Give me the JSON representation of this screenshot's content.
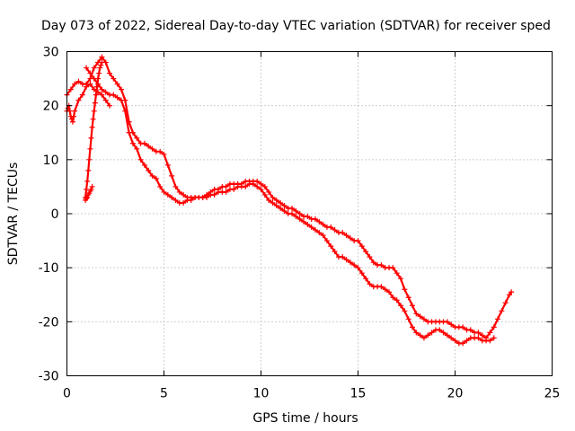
{
  "chart_data": {
    "type": "scatter",
    "title": "Day 073 of 2022, Sidereal Day-to-day VTEC variation (SDTVAR) for receiver sped",
    "xlabel": "GPS time / hours",
    "ylabel": "SDTVAR / TECUs",
    "xlim": [
      0,
      25
    ],
    "ylim": [
      -30,
      30
    ],
    "xticks": [
      "0",
      "5",
      "10",
      "15",
      "20",
      "25"
    ],
    "yticks": [
      "-30",
      "-20",
      "-10",
      "0",
      "10",
      "20",
      "30"
    ],
    "grid": true,
    "marker": "+",
    "color": "#ff0000",
    "series": [
      {
        "name": "track-a",
        "x": [
          0.0,
          0.2,
          0.4,
          0.6,
          0.8,
          1.0,
          1.2,
          1.4,
          1.6,
          1.8,
          2.0,
          2.2,
          2.4,
          2.6,
          2.8,
          3.0,
          3.2,
          3.4,
          3.6,
          3.8,
          4.0,
          4.2,
          4.4,
          4.6,
          4.8,
          5.0,
          5.2,
          5.4,
          5.6,
          5.8,
          6.0,
          6.2,
          6.4,
          6.6,
          6.8,
          7.0,
          7.2,
          7.4,
          7.6,
          7.8,
          8.0,
          8.2,
          8.4,
          8.6,
          8.8,
          9.0,
          9.2,
          9.4,
          9.6,
          9.8,
          10.0,
          10.2,
          10.4,
          10.6,
          10.8,
          11.0,
          11.2,
          11.4,
          11.6,
          11.8,
          12.0,
          12.2,
          12.4,
          12.6,
          12.8,
          13.0,
          13.2,
          13.4,
          13.6,
          13.8,
          14.0,
          14.2,
          14.4,
          14.6,
          14.8,
          15.0,
          15.2,
          15.4,
          15.6,
          15.8,
          16.0,
          16.2,
          16.4,
          16.6,
          16.8,
          17.0,
          17.2,
          17.4,
          17.6,
          17.8,
          18.0,
          18.2,
          18.4,
          18.6,
          18.8,
          19.0,
          19.2,
          19.4,
          19.6,
          19.8,
          20.0,
          20.2,
          20.4,
          20.6,
          20.8,
          21.0,
          21.2,
          21.4,
          21.6,
          21.8,
          22.0,
          22.2,
          22.4,
          22.6,
          22.8,
          22.9
        ],
        "y": [
          22,
          23,
          24,
          24.5,
          24,
          24,
          25,
          27,
          28,
          29,
          28,
          26,
          25,
          24,
          23,
          21,
          17,
          15,
          14,
          13,
          13,
          12.5,
          12,
          11.5,
          11.5,
          11,
          9,
          7,
          5,
          4,
          3.5,
          3,
          3,
          3,
          3,
          3,
          3.5,
          4,
          4.5,
          4.5,
          5,
          5,
          5.5,
          5.5,
          5.5,
          5.5,
          6,
          6,
          6,
          6,
          5.5,
          5,
          4,
          3,
          2.5,
          2,
          1.5,
          1,
          1,
          0.5,
          0,
          -0.5,
          -0.5,
          -1,
          -1,
          -1.5,
          -2,
          -2.5,
          -2.5,
          -3,
          -3.5,
          -3.5,
          -4,
          -4.5,
          -5,
          -5,
          -6,
          -7,
          -8,
          -9,
          -9.5,
          -9.5,
          -10,
          -10,
          -10,
          -11,
          -12,
          -14,
          -15.5,
          -17,
          -18.5,
          -19,
          -19.5,
          -20,
          -20,
          -20,
          -20,
          -20,
          -20,
          -20.5,
          -21,
          -21,
          -21,
          -21.5,
          -21.5,
          -22,
          -22,
          -22.5,
          -23,
          -22,
          -21,
          -19.5,
          -18,
          -16.5,
          -15,
          -14.5
        ]
      },
      {
        "name": "track-b",
        "x": [
          1.0,
          1.2,
          1.4,
          1.6,
          1.8,
          2.0,
          2.2,
          2.4,
          2.6,
          2.8,
          3.0,
          3.2,
          3.4,
          3.6,
          3.8,
          4.0,
          4.2,
          4.4,
          4.6,
          4.8,
          5.0,
          5.2,
          5.4,
          5.6,
          5.8,
          6.0,
          6.2,
          6.4,
          6.6,
          6.8,
          7.0,
          7.2,
          7.4,
          7.6,
          7.8,
          8.0,
          8.2,
          8.4,
          8.6,
          8.8,
          9.0,
          9.2,
          9.4,
          9.6,
          9.8,
          10.0,
          10.2,
          10.4,
          10.6,
          10.8,
          11.0,
          11.2,
          11.4,
          11.6,
          11.8,
          12.0,
          12.2,
          12.4,
          12.6,
          12.8,
          13.0,
          13.2,
          13.4,
          13.6,
          13.8,
          14.0,
          14.2,
          14.4,
          14.6,
          14.8,
          15.0,
          15.2,
          15.4,
          15.6,
          15.8,
          16.0,
          16.2,
          16.4,
          16.6,
          16.8,
          17.0,
          17.2,
          17.4,
          17.6,
          17.8,
          18.0,
          18.2,
          18.4,
          18.6,
          18.8,
          19.0,
          19.2,
          19.4,
          19.6,
          19.8,
          20.0,
          20.2,
          20.4,
          20.6,
          20.8,
          21.0,
          21.2,
          21.4,
          21.6,
          21.8,
          22.0
        ],
        "y": [
          27,
          26,
          25,
          24,
          23,
          22.5,
          22,
          22,
          21.5,
          21,
          19,
          15,
          13,
          12,
          10,
          9,
          8,
          7,
          6.5,
          5,
          4,
          3.5,
          3,
          2.5,
          2,
          2,
          2.5,
          2.5,
          3,
          3,
          3,
          3,
          3.5,
          3.5,
          4,
          4,
          4,
          4.5,
          4.5,
          5,
          5,
          5,
          5.5,
          5.5,
          5,
          4.5,
          3.5,
          2.5,
          2,
          1.5,
          1,
          0.5,
          0,
          0,
          -0.5,
          -1,
          -1.5,
          -2,
          -2.5,
          -3,
          -3.5,
          -4,
          -5,
          -6,
          -7,
          -8,
          -8,
          -8.5,
          -9,
          -9.5,
          -10,
          -11,
          -12,
          -13,
          -13.5,
          -13.5,
          -13.5,
          -14,
          -14.5,
          -15.5,
          -16,
          -17,
          -18,
          -19.5,
          -21,
          -22,
          -22.5,
          -23,
          -22.5,
          -22,
          -21.5,
          -21.5,
          -22,
          -22.5,
          -23,
          -23.5,
          -24,
          -24,
          -23.5,
          -23,
          -23,
          -23,
          -23.5,
          -23.5,
          -23.5,
          -23
        ]
      },
      {
        "name": "track-c",
        "x": [
          0.0,
          0.05,
          0.1,
          0.15,
          0.2,
          0.25,
          0.3,
          0.35,
          0.4,
          0.6,
          0.8,
          1.0,
          1.2,
          1.4,
          1.6,
          1.8,
          2.0,
          2.2
        ],
        "y": [
          19,
          19.5,
          20,
          19,
          18,
          17.5,
          17,
          18,
          19,
          21,
          22,
          23.5,
          24,
          23,
          22.5,
          22,
          21,
          20
        ]
      },
      {
        "name": "track-d",
        "x": [
          0.95,
          1.0,
          1.05,
          1.1,
          1.15,
          1.2,
          1.25,
          1.3,
          1.35,
          1.4,
          1.45,
          1.5,
          1.55,
          1.6,
          1.65,
          1.7,
          1.75,
          1.8
        ],
        "y": [
          3,
          4.5,
          6,
          8,
          10,
          12,
          14,
          16,
          17.5,
          19,
          20.5,
          22,
          23.5,
          25,
          26,
          27,
          27.5,
          28
        ]
      },
      {
        "name": "track-e",
        "x": [
          0.95,
          1.0,
          1.05,
          1.1,
          1.15,
          1.2,
          1.25,
          1.3
        ],
        "y": [
          2.5,
          2.8,
          3,
          3.5,
          3.8,
          4.2,
          4.5,
          5
        ]
      }
    ]
  }
}
